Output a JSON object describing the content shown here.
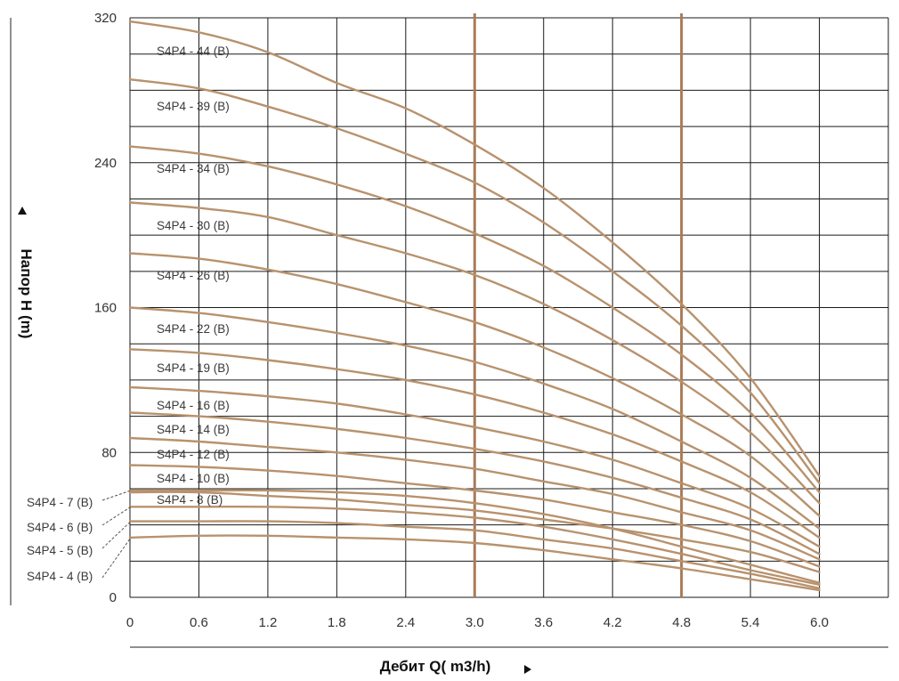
{
  "chart_data": {
    "type": "line",
    "xlabel": "Дебит Q( m3/h)",
    "ylabel": "Напор H (m)",
    "xlim": [
      0,
      6.6
    ],
    "ylim": [
      0,
      320
    ],
    "x_ticks": [
      "0",
      "0.6",
      "1.2",
      "1.8",
      "2.4",
      "3.0",
      "3.6",
      "4.2",
      "4.8",
      "5.4",
      "6.0"
    ],
    "y_ticks": [
      {
        "value": 0,
        "label": "0"
      },
      {
        "value": 80,
        "label": "80"
      },
      {
        "value": 160,
        "label": "160"
      },
      {
        "value": 240,
        "label": "240"
      },
      {
        "value": 320,
        "label": "320"
      }
    ],
    "grid": true,
    "grid_y_step": 20,
    "grid_x_step": 0.6,
    "highlight_x": [
      3.0,
      4.8
    ],
    "colors": {
      "curve": "#b8926d",
      "highlight": "#a87b58",
      "grid": "#1a1a1a"
    },
    "x": [
      0,
      0.6,
      1.2,
      1.8,
      2.4,
      3.0,
      3.6,
      4.2,
      4.8,
      5.4,
      6.0
    ],
    "series": [
      {
        "name": "S4P4 - 44 (B)",
        "values": [
          318,
          312,
          301,
          284,
          270,
          250,
          226,
          196,
          162,
          121,
          67
        ]
      },
      {
        "name": "S4P4 - 39 (B)",
        "values": [
          286,
          281,
          271,
          259,
          245,
          229,
          207,
          180,
          150,
          113,
          63
        ]
      },
      {
        "name": "S4P4 - 34 (B)",
        "values": [
          249,
          245,
          238,
          228,
          216,
          201,
          183,
          160,
          134,
          102,
          58
        ]
      },
      {
        "name": "S4P4 - 30 (B)",
        "values": [
          218,
          215,
          210,
          200,
          190,
          178,
          162,
          142,
          119,
          91,
          52
        ]
      },
      {
        "name": "S4P4 - 26 (B)",
        "values": [
          190,
          187,
          181,
          173,
          163,
          152,
          138,
          121,
          101,
          78,
          45
        ]
      },
      {
        "name": "S4P4 - 22 (B)",
        "values": [
          160,
          157,
          152,
          146,
          139,
          130,
          118,
          104,
          86,
          66,
          38
        ]
      },
      {
        "name": "S4P4 - 19 (B)",
        "values": [
          137,
          135,
          131,
          126,
          120,
          112,
          102,
          90,
          75,
          58,
          33
        ]
      },
      {
        "name": "S4P4 - 16 (B)",
        "values": [
          116,
          114,
          111,
          107,
          101,
          94,
          86,
          76,
          63,
          49,
          28
        ]
      },
      {
        "name": "S4P4 - 14 (B)",
        "values": [
          102,
          100,
          97,
          93,
          88,
          82,
          75,
          66,
          55,
          43,
          24
        ]
      },
      {
        "name": "S4P4 - 12 (B)",
        "values": [
          88,
          86,
          83,
          80,
          76,
          71,
          64,
          57,
          47,
          37,
          21
        ]
      },
      {
        "name": "S4P4 - 10 (B)",
        "values": [
          73,
          72,
          70,
          67,
          63,
          59,
          54,
          47,
          40,
          31,
          17
        ]
      },
      {
        "name": "S4P4 - 8 (B)",
        "values": [
          58,
          58,
          56,
          54,
          51,
          48,
          43,
          38,
          32,
          25,
          14
        ]
      },
      {
        "name": "S4P4 - 7 (B)",
        "values": [
          59,
          59,
          59,
          58,
          56,
          52,
          46,
          38,
          28,
          18,
          8
        ]
      },
      {
        "name": "S4P4 - 6 (B)",
        "values": [
          50,
          50,
          50,
          49,
          47,
          44,
          39,
          32,
          24,
          15,
          7
        ]
      },
      {
        "name": "S4P4 - 5 (B)",
        "values": [
          42,
          42,
          42,
          41,
          39,
          37,
          32,
          27,
          20,
          13,
          5
        ]
      },
      {
        "name": "S4P4 - 4 (B)",
        "values": [
          33,
          34,
          34,
          33,
          32,
          30,
          26,
          21,
          16,
          10,
          4
        ]
      }
    ],
    "label_texts": {
      "S4P4 - 44 (B)": "S4P4 - 44 (B)",
      "S4P4 - 39 (B)": "S4P4 - 39 (B)",
      "S4P4 - 34 (B)": "S4P4 - 34 (B)",
      "S4P4 - 30 (B)": "S4P4 - 30 (B)",
      "S4P4 - 26 (B)": "S4P4 - 26 (B)",
      "S4P4 - 22 (B)": "S4P4 - 22 (B)",
      "S4P4 - 19 (B)": "S4P4 - 19 (B)",
      "S4P4 - 16 (B)": "S4P4 - 16 (B)",
      "S4P4 - 14 (B)": "S4P4 - 14 (B)",
      "S4P4 - 12 (B)": "S4P4 - 12 (B)",
      "S4P4 - 10 (B)": "S4P4 - 10 (B)",
      "S4P4 - 8 (B)": "S4P4 - 8 (B)",
      "S4P4 - 7 (B)": "S4P4 - 7 (B)",
      "S4P4 - 6 (B)": "S4P4 - 6 (B)",
      "S4P4 - 5 (B)": "S4P4 - 5 (B)",
      "S4P4 - 4 (B)": "S4P4 - 4 (B)"
    }
  }
}
